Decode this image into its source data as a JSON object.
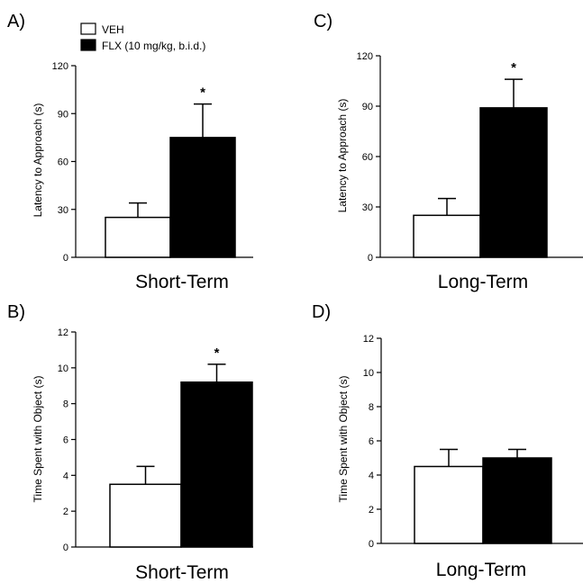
{
  "legend": {
    "items": [
      {
        "label": "VEH",
        "color": "#ffffff"
      },
      {
        "label": "FLX (10 mg/kg, b.i.d.)",
        "color": "#000000"
      }
    ]
  },
  "chart_data": [
    {
      "type": "bar",
      "panel": "A)",
      "categories": [
        "Short-Term"
      ],
      "xlabel": "Short-Term",
      "ylabel": "Latency to Approach (s)",
      "ylim": [
        0,
        120
      ],
      "yticks": [
        "0",
        "30",
        "60",
        "90",
        "120"
      ],
      "series": [
        {
          "name": "VEH",
          "values": [
            25
          ],
          "error": [
            9
          ]
        },
        {
          "name": "FLX (10 mg/kg, b.i.d.)",
          "values": [
            75
          ],
          "error": [
            21
          ]
        }
      ],
      "annotations": [
        {
          "series": 1,
          "text": "*"
        }
      ]
    },
    {
      "type": "bar",
      "panel": "C)",
      "categories": [
        "Long-Term"
      ],
      "xlabel": "Long-Term",
      "ylabel": "Latency to Approach (s)",
      "ylim": [
        0,
        120
      ],
      "yticks": [
        "0",
        "30",
        "60",
        "90",
        "120"
      ],
      "series": [
        {
          "name": "VEH",
          "values": [
            25
          ],
          "error": [
            10
          ]
        },
        {
          "name": "FLX (10 mg/kg, b.i.d.)",
          "values": [
            89
          ],
          "error": [
            17
          ]
        }
      ],
      "annotations": [
        {
          "series": 1,
          "text": "*"
        }
      ]
    },
    {
      "type": "bar",
      "panel": "B)",
      "categories": [
        "Short-Term"
      ],
      "xlabel": "Short-Term",
      "ylabel": "Time Spent with Object (s)",
      "ylim": [
        0,
        12
      ],
      "yticks": [
        "0",
        "2",
        "4",
        "6",
        "8",
        "10",
        "12"
      ],
      "series": [
        {
          "name": "VEH",
          "values": [
            3.5
          ],
          "error": [
            1.0
          ]
        },
        {
          "name": "FLX (10 mg/kg, b.i.d.)",
          "values": [
            9.2
          ],
          "error": [
            1.0
          ]
        }
      ],
      "annotations": [
        {
          "series": 1,
          "text": "*"
        }
      ]
    },
    {
      "type": "bar",
      "panel": "D)",
      "categories": [
        "Long-Term"
      ],
      "xlabel": "Long-Term",
      "ylabel": "Time Spent with Object (s)",
      "ylim": [
        0,
        12
      ],
      "yticks": [
        "0",
        "2",
        "4",
        "6",
        "8",
        "10",
        "12"
      ],
      "series": [
        {
          "name": "VEH",
          "values": [
            4.5
          ],
          "error": [
            1.0
          ]
        },
        {
          "name": "FLX (10 mg/kg, b.i.d.)",
          "values": [
            5.0
          ],
          "error": [
            0.5
          ]
        }
      ],
      "annotations": []
    }
  ]
}
